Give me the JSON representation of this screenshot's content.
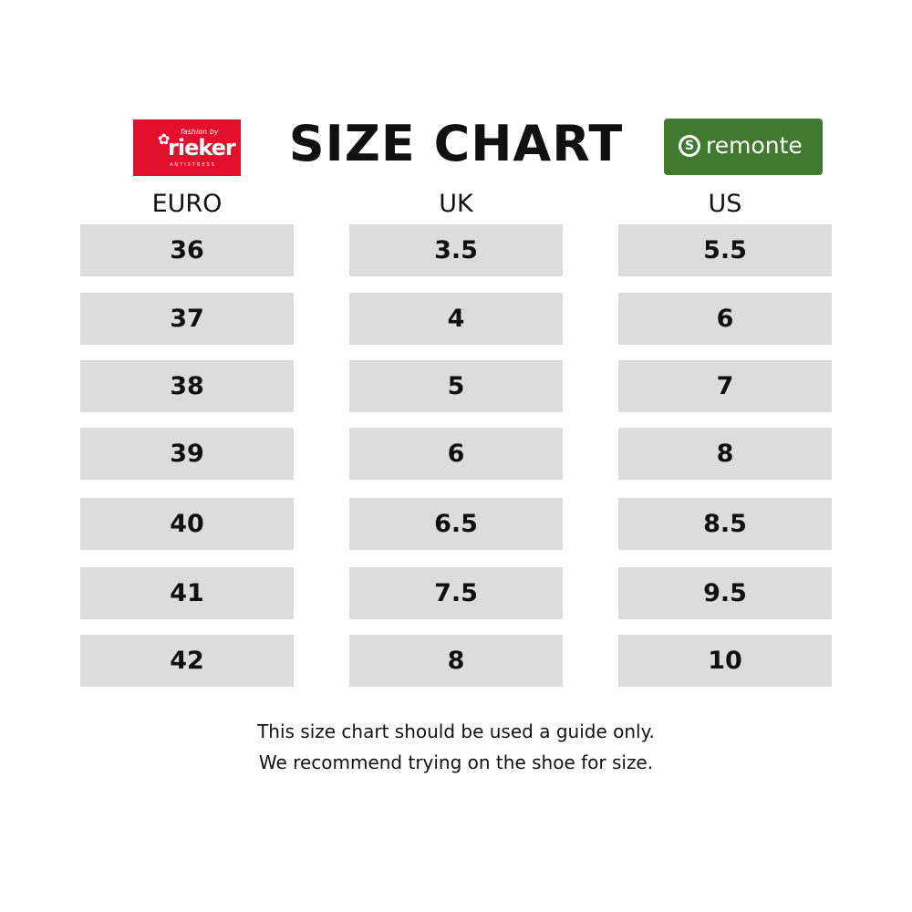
{
  "title": "SIZE CHART",
  "logos": {
    "left": {
      "brand": "rieker",
      "tagline": "fashion by",
      "subtext": "ANTISTRESS",
      "color": "#e3102d"
    },
    "right": {
      "brand": "remonte",
      "color": "#3f7a2e"
    }
  },
  "columns": [
    {
      "header": "EURO",
      "values": [
        "36",
        "37",
        "38",
        "39",
        "40",
        "41",
        "42"
      ]
    },
    {
      "header": "UK",
      "values": [
        "3.5",
        "4",
        "5",
        "6",
        "6.5",
        "7.5",
        "8"
      ]
    },
    {
      "header": "US",
      "values": [
        "5.5",
        "6",
        "7",
        "8",
        "8.5",
        "9.5",
        "10"
      ]
    }
  ],
  "footer": [
    "This size chart should be used a guide only.",
    "We recommend trying on the shoe for size."
  ]
}
